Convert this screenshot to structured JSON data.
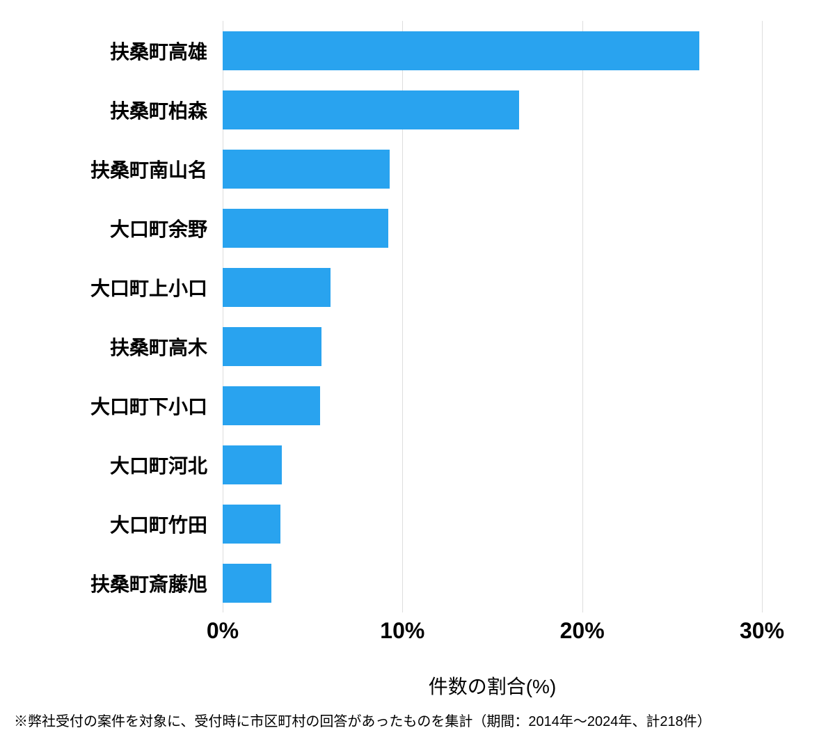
{
  "chart": {
    "type": "bar",
    "orientation": "horizontal",
    "categories": [
      "扶桑町高雄",
      "扶桑町柏森",
      "扶桑町南山名",
      "大口町余野",
      "大口町上小口",
      "扶桑町高木",
      "大口町下小口",
      "大口町河北",
      "大口町竹田",
      "扶桑町斎藤旭"
    ],
    "values": [
      26.5,
      16.5,
      9.3,
      9.2,
      6.0,
      5.5,
      5.4,
      3.3,
      3.2,
      2.7
    ],
    "bar_color": "#29a3ef",
    "background_color": "#ffffff",
    "grid_color": "#dddddd",
    "xlim": [
      0,
      30
    ],
    "xtick_step": 10,
    "xtick_labels": [
      "0%",
      "10%",
      "20%",
      "30%"
    ],
    "xaxis_title": "件数の割合(%)",
    "bar_height_ratio": 0.66,
    "axis_label_fontsize": 32,
    "axis_label_fontweight": 700,
    "category_label_fontsize": 28,
    "category_label_fontweight": 600,
    "xaxis_title_fontsize": 28,
    "footnote_fontsize": 20
  },
  "footnote": "※弊社受付の案件を対象に、受付時に市区町村の回答があったものを集計（期間：2014年～2024年、計218件）"
}
